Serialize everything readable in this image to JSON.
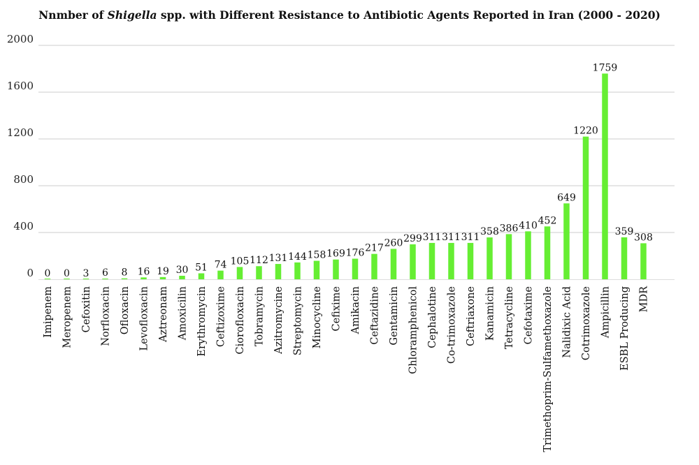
{
  "chart_data": {
    "type": "bar",
    "title_prefix": "Nnmber of ",
    "title_italic": "Shigella",
    "title_suffix": " spp. with Different Resistance to Antibiotic Agents Reported in Iran (2000 - 2020)",
    "xlabel": "",
    "ylabel": "",
    "ylim": [
      0,
      2000
    ],
    "yticks": [
      0,
      400,
      800,
      1200,
      1600,
      2000
    ],
    "grid": true,
    "bar_color": "#66ee33",
    "grid_color": "#cccccc",
    "categories": [
      "Imipenem",
      "Meropenem",
      "Cefoxitin",
      "Norfloxacin",
      "Ofloxacin",
      "Levofloxacin",
      "Aztreonam",
      "Amoxicilin",
      "Erythromycin",
      "Ceftizoxime",
      "Ciorofloxacin",
      "Tobramycin",
      "Azitromycine",
      "Streptomycin",
      "Minocycline",
      "Cefixime",
      "Amikacin",
      "Ceftazidine",
      "Gentamicin",
      "Chloramphenicol",
      "Cephalotine",
      "Co-trimoxazole",
      "Ceftriaxone",
      "Kanamicin",
      "Tetracycline",
      "Cefotaxime",
      "Trimethoprim-Sulfamethoxazole",
      "Nalidixic Acid",
      "Cotrimoxazole",
      "Ampicillin",
      "ESBL Producing",
      "MDR"
    ],
    "values": [
      0,
      0,
      3,
      6,
      8,
      16,
      19,
      30,
      51,
      74,
      105,
      112,
      131,
      144,
      158,
      169,
      176,
      217,
      260,
      299,
      311,
      311,
      311,
      358,
      386,
      410,
      452,
      649,
      1220,
      1759,
      359,
      308
    ]
  }
}
